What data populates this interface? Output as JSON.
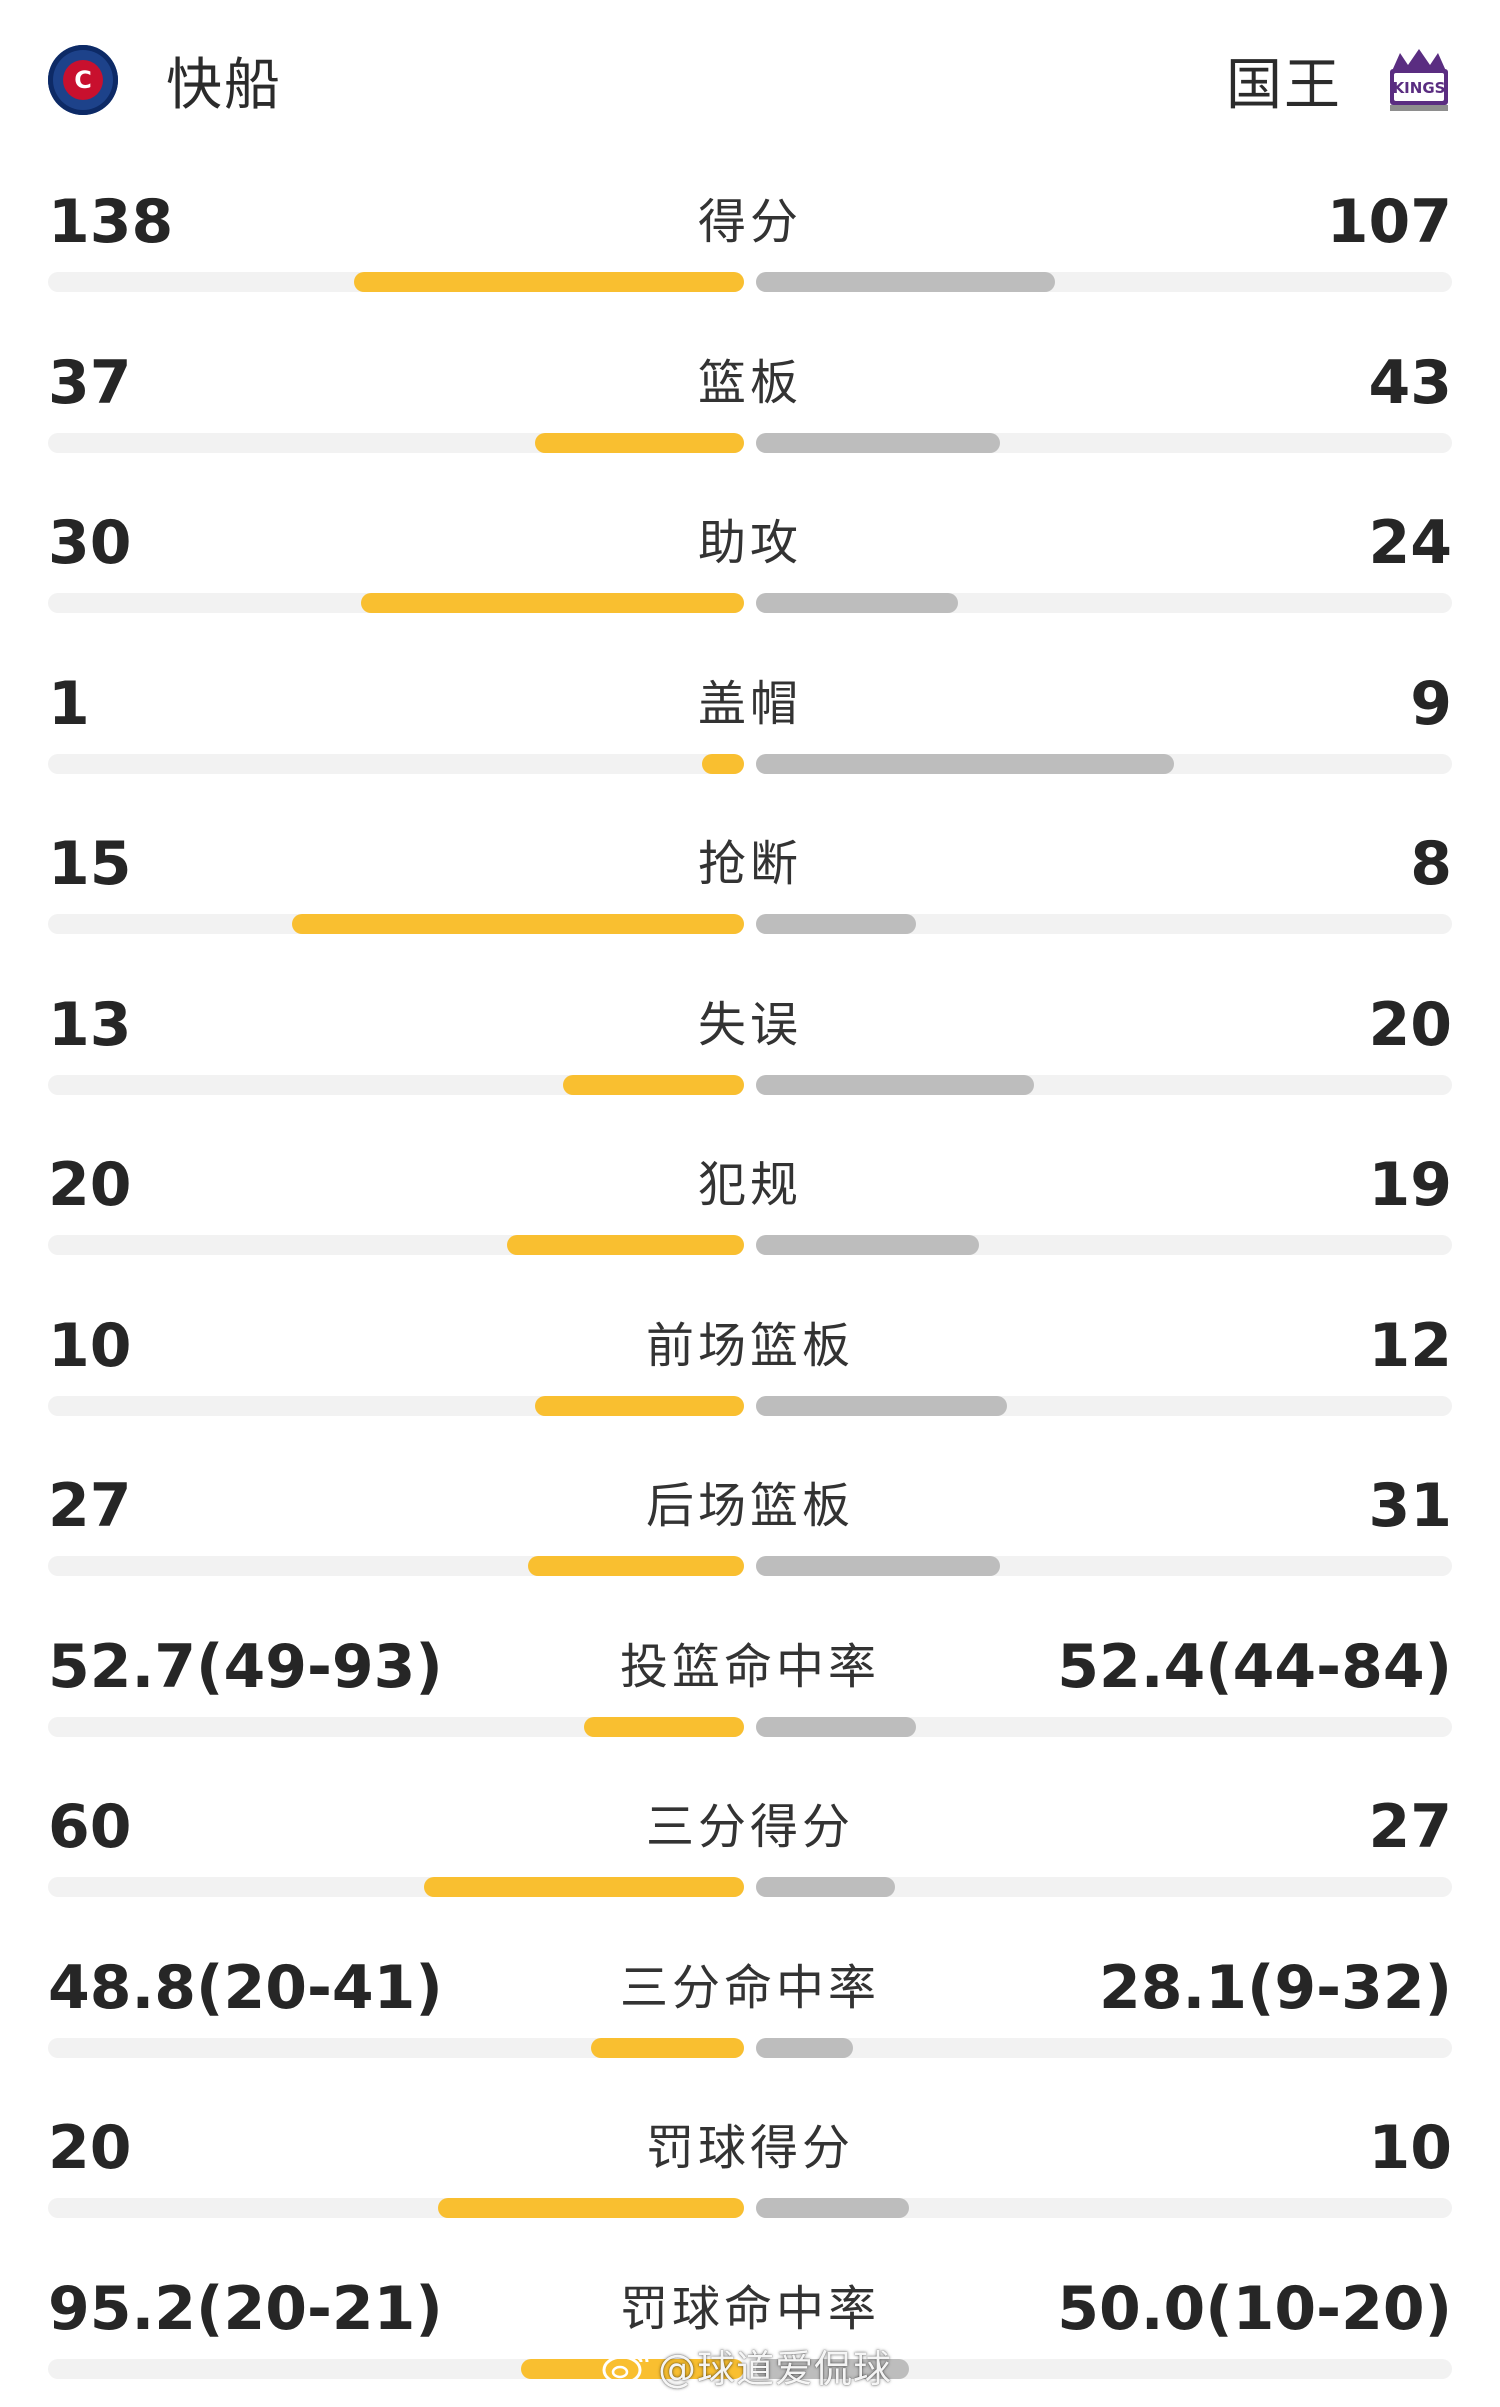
{
  "header": {
    "home_team": "快船",
    "away_team": "国王",
    "home_logo_icon": "clippers-logo-icon",
    "away_logo_icon": "kings-logo-icon",
    "home_logo_text": "C",
    "away_logo_text": "KINGS"
  },
  "colors": {
    "home_bar": "#f9bf30",
    "away_bar": "#bdbdbd",
    "track": "#f2f2f2"
  },
  "stats": [
    {
      "label": "得分",
      "home": "138",
      "away": "107",
      "home_fill": 0.56,
      "away_fill": 0.43
    },
    {
      "label": "篮板",
      "home": "37",
      "away": "43",
      "home_fill": 0.3,
      "away_fill": 0.35
    },
    {
      "label": "助攻",
      "home": "30",
      "away": "24",
      "home_fill": 0.55,
      "away_fill": 0.29
    },
    {
      "label": "盖帽",
      "home": "1",
      "away": "9",
      "home_fill": 0.06,
      "away_fill": 0.6
    },
    {
      "label": "抢断",
      "home": "15",
      "away": "8",
      "home_fill": 0.65,
      "away_fill": 0.23
    },
    {
      "label": "失误",
      "home": "13",
      "away": "20",
      "home_fill": 0.26,
      "away_fill": 0.4
    },
    {
      "label": "犯规",
      "home": "20",
      "away": "19",
      "home_fill": 0.34,
      "away_fill": 0.32
    },
    {
      "label": "前场篮板",
      "home": "10",
      "away": "12",
      "home_fill": 0.3,
      "away_fill": 0.36
    },
    {
      "label": "后场篮板",
      "home": "27",
      "away": "31",
      "home_fill": 0.31,
      "away_fill": 0.35
    },
    {
      "label": "投篮命中率",
      "home": "52.7(49-93)",
      "away": "52.4(44-84)",
      "home_fill": 0.23,
      "away_fill": 0.23
    },
    {
      "label": "三分得分",
      "home": "60",
      "away": "27",
      "home_fill": 0.46,
      "away_fill": 0.2
    },
    {
      "label": "三分命中率",
      "home": "48.8(20-41)",
      "away": "28.1(9-32)",
      "home_fill": 0.22,
      "away_fill": 0.14
    },
    {
      "label": "罚球得分",
      "home": "20",
      "away": "10",
      "home_fill": 0.44,
      "away_fill": 0.22
    },
    {
      "label": "罚球命中率",
      "home": "95.2(20-21)",
      "away": "50.0(10-20)",
      "home_fill": 0.32,
      "away_fill": 0.22
    }
  ],
  "watermark": {
    "text": "@球道爱侃球",
    "icon": "weibo-icon"
  }
}
